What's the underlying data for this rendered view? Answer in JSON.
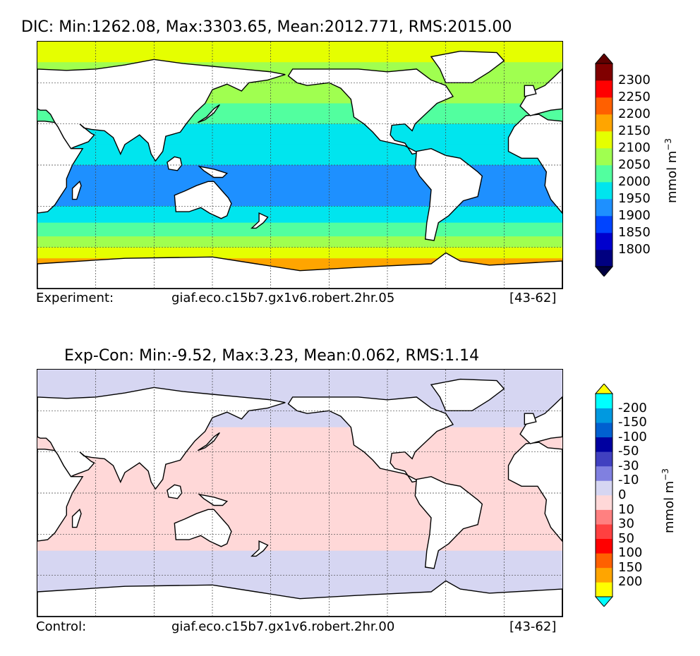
{
  "chart_data": [
    {
      "type": "heatmap",
      "title": "DIC: Min:1262.08, Max:3303.65, Mean:2012.771, RMS:2015.00",
      "footer_left": "Experiment:",
      "footer_center": "giaf.eco.c15b7.gx1v6.robert.2hr.05",
      "footer_right": "[43-62]",
      "colorbar": {
        "unit_base": "mmol m",
        "unit_exp": "−3",
        "extend": "both",
        "ticks": [
          "1800",
          "1850",
          "1900",
          "1950",
          "2000",
          "2050",
          "2100",
          "2150",
          "2200",
          "2250",
          "2300"
        ],
        "colors": [
          "#000080",
          "#0000cd",
          "#0044ff",
          "#1e90ff",
          "#00e5ee",
          "#52ff9f",
          "#a0ff50",
          "#e5ff00",
          "#ffa500",
          "#ff6000",
          "#ff0000",
          "#800000"
        ],
        "under_color": "#000040",
        "over_color": "#600000"
      },
      "bands": [
        {
          "lat": 90,
          "value": 2100
        },
        {
          "lat": 75,
          "value": 2075
        },
        {
          "lat": 60,
          "value": 2050
        },
        {
          "lat": 45,
          "value": 2040
        },
        {
          "lat": 30,
          "value": 1990
        },
        {
          "lat": 15,
          "value": 1960
        },
        {
          "lat": 0,
          "value": 1930
        },
        {
          "lat": -15,
          "value": 1930
        },
        {
          "lat": -30,
          "value": 1975
        },
        {
          "lat": -42,
          "value": 2020
        },
        {
          "lat": -52,
          "value": 2080
        },
        {
          "lat": -60,
          "value": 2130
        },
        {
          "lat": -68,
          "value": 2175
        },
        {
          "lat": -78,
          "value": 2210
        },
        {
          "lat": -90,
          "value": 2210
        }
      ]
    },
    {
      "type": "heatmap",
      "title": "Exp-Con: Min:-9.52, Max:3.23, Mean:0.062, RMS:1.14",
      "footer_left": "Control:",
      "footer_center": "giaf.eco.c15b7.gx1v6.robert.2hr.00",
      "footer_right": "[43-62]",
      "colorbar": {
        "unit_base": "mmol m",
        "unit_exp": "−3",
        "extend": "both",
        "ticks": [
          "200",
          "150",
          "100",
          "50",
          "30",
          "10",
          "0",
          "-10",
          "-30",
          "-50",
          "-100",
          "-150",
          "-200"
        ],
        "colors": [
          "#ffff00",
          "#ffa500",
          "#ff6000",
          "#ff0000",
          "#ff4040",
          "#ff8080",
          "#ffd8d8",
          "#d6d6f2",
          "#8080e0",
          "#4040c0",
          "#0000a0",
          "#0060d0",
          "#0099e0",
          "#00ffff"
        ],
        "under_color": "#00ffff",
        "over_color": "#ffff00"
      },
      "bands": [
        {
          "lat": 90,
          "value": -5
        },
        {
          "lat": 55,
          "value": -5
        },
        {
          "lat": 48,
          "value": 5
        },
        {
          "lat": 0,
          "value": 5
        },
        {
          "lat": -35,
          "value": 5
        },
        {
          "lat": -42,
          "value": -5
        },
        {
          "lat": -90,
          "value": -5
        }
      ]
    }
  ]
}
